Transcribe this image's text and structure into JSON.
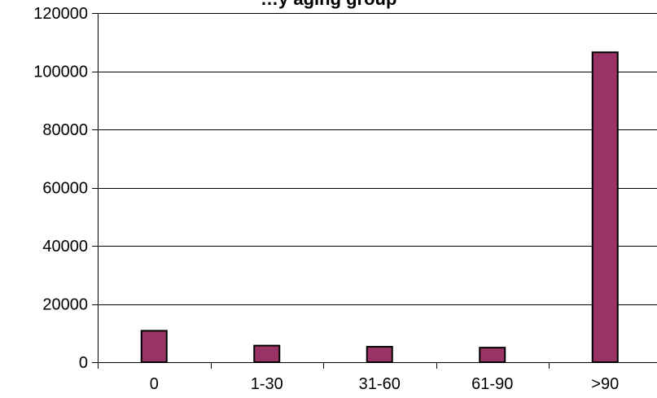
{
  "chart_data": {
    "type": "bar",
    "title": "…y aging group",
    "categories": [
      "0",
      "1-30",
      "31-60",
      "61-90",
      ">90"
    ],
    "values": [
      10800,
      5700,
      5300,
      5000,
      106500
    ],
    "ylim": [
      0,
      120000
    ],
    "yticks": [
      0,
      20000,
      40000,
      60000,
      80000,
      100000,
      120000
    ],
    "grid": true,
    "legend": "none",
    "colors": {
      "bar_fill": "#993366",
      "bar_stroke": "#000000",
      "gridline": "#000000",
      "axis": "#000000",
      "background": "#ffffff"
    }
  }
}
